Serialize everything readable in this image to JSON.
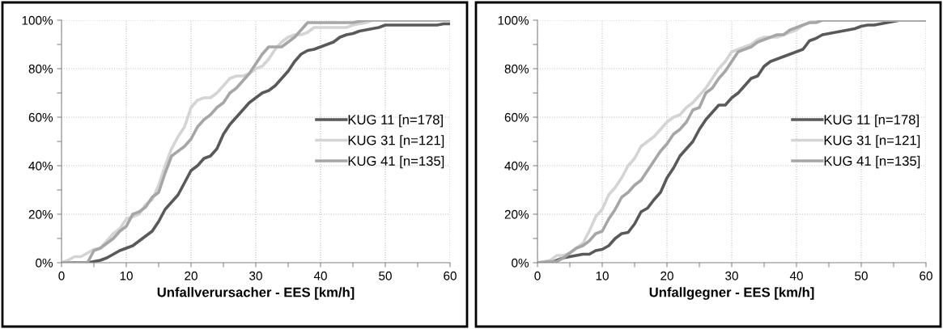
{
  "chart_data": [
    {
      "type": "line",
      "xlabel": "Unfallverursacher - EES [km/h]",
      "xlim": [
        0,
        60
      ],
      "ylim": [
        0,
        100
      ],
      "xticks": [
        0,
        {
          "value": 5,
          "label": null
        },
        10,
        {
          "value": 15,
          "label": null
        },
        20,
        {
          "value": 25,
          "label": null
        },
        30,
        {
          "value": 35,
          "label": null
        },
        40,
        {
          "value": 45,
          "label": null
        },
        50,
        {
          "value": 55,
          "label": null
        },
        60
      ],
      "yticks": [
        {
          "value": 0,
          "label": "0%"
        },
        {
          "value": 10,
          "label": null
        },
        {
          "value": 20,
          "label": "20%"
        },
        {
          "value": 30,
          "label": null
        },
        {
          "value": 40,
          "label": "40%"
        },
        {
          "value": 50,
          "label": null
        },
        {
          "value": 60,
          "label": "60%"
        },
        {
          "value": 70,
          "label": null
        },
        {
          "value": 80,
          "label": "80%"
        },
        {
          "value": 90,
          "label": null
        },
        {
          "value": 100,
          "label": "100%"
        }
      ],
      "grid": true,
      "legend": "right",
      "marker": "none",
      "line_style": "solid",
      "series": [
        {
          "name": "KUG 11 [n=178]",
          "color": "#595959",
          "x": [
            0,
            4,
            5,
            6,
            7,
            8,
            9,
            10,
            11,
            12,
            13,
            14,
            15,
            16,
            17,
            18,
            19,
            20,
            21,
            22,
            23,
            24,
            25,
            26,
            27,
            28,
            29,
            30,
            31,
            32,
            33,
            34,
            35,
            36,
            37,
            38,
            39,
            40,
            41,
            42,
            43,
            44,
            45,
            46,
            47,
            48,
            49,
            50,
            55,
            58,
            59,
            60
          ],
          "values": [
            0,
            0,
            0.5,
            1,
            2,
            3.5,
            5,
            6,
            7,
            9,
            11,
            13,
            17,
            22,
            25,
            28,
            33,
            38,
            40,
            43,
            44,
            47,
            53,
            57,
            60,
            63,
            66,
            68,
            70,
            71,
            73,
            76,
            79,
            83,
            86,
            87.5,
            88,
            89,
            90,
            91,
            93,
            94,
            94.5,
            95.5,
            96,
            96.5,
            97,
            98,
            98,
            98,
            98.5,
            98.5
          ]
        },
        {
          "name": "KUG 31 [n=121]",
          "color": "#d4d4d4",
          "x": [
            0,
            1,
            2,
            3,
            4,
            5,
            6,
            7,
            8,
            9,
            10,
            11,
            12,
            13,
            14,
            15,
            16,
            17,
            18,
            19,
            20,
            21,
            22,
            23,
            24,
            25,
            26,
            27,
            28,
            29,
            30,
            31,
            32,
            33,
            34,
            35,
            36,
            37,
            38,
            39,
            40,
            44,
            45,
            47,
            48,
            60
          ],
          "values": [
            0,
            1,
            2.5,
            2.5,
            4,
            5.5,
            6,
            9,
            12,
            14,
            18,
            19,
            20,
            24,
            26,
            32,
            40,
            47,
            52,
            56,
            64,
            67,
            68,
            68,
            70,
            73,
            76,
            77,
            77,
            78,
            80,
            81,
            84,
            88,
            91,
            93,
            94,
            94,
            95,
            97,
            97,
            97,
            98,
            99,
            100,
            100
          ]
        },
        {
          "name": "KUG 41 [n=135]",
          "color": "#a6a6a6",
          "x": [
            0,
            4,
            5,
            6,
            7,
            8,
            9,
            10,
            11,
            12,
            13,
            14,
            15,
            16,
            17,
            18,
            19,
            20,
            21,
            22,
            23,
            24,
            25,
            26,
            27,
            28,
            29,
            30,
            31,
            32,
            33,
            34,
            35,
            36,
            37,
            38,
            39,
            44,
            45,
            47,
            60
          ],
          "values": [
            0,
            0,
            5,
            6,
            8,
            10,
            13,
            15,
            20,
            21,
            23,
            27,
            29,
            37,
            44,
            46,
            48,
            51,
            56,
            59,
            61,
            64,
            66,
            70,
            72,
            75,
            78,
            82,
            86,
            89,
            89,
            89,
            91,
            93,
            96,
            99,
            99,
            99,
            99,
            100,
            100
          ]
        }
      ]
    },
    {
      "type": "line",
      "xlabel": "Unfallgegner - EES [km/h]",
      "xlim": [
        0,
        60
      ],
      "ylim": [
        0,
        100
      ],
      "xticks": [
        0,
        {
          "value": 5,
          "label": null
        },
        10,
        {
          "value": 15,
          "label": null
        },
        20,
        {
          "value": 25,
          "label": null
        },
        30,
        {
          "value": 35,
          "label": null
        },
        40,
        {
          "value": 45,
          "label": null
        },
        50,
        {
          "value": 55,
          "label": null
        },
        60
      ],
      "yticks": [
        {
          "value": 0,
          "label": "0%"
        },
        {
          "value": 10,
          "label": null
        },
        {
          "value": 20,
          "label": "20%"
        },
        {
          "value": 30,
          "label": null
        },
        {
          "value": 40,
          "label": "40%"
        },
        {
          "value": 50,
          "label": null
        },
        {
          "value": 60,
          "label": "60%"
        },
        {
          "value": 70,
          "label": null
        },
        {
          "value": 80,
          "label": "80%"
        },
        {
          "value": 90,
          "label": null
        },
        {
          "value": 100,
          "label": "100%"
        }
      ],
      "grid": true,
      "legend": "right",
      "marker": "none",
      "line_style": "solid",
      "series": [
        {
          "name": "KUG 11 [n=178]",
          "color": "#595959",
          "x": [
            0,
            2,
            3,
            4,
            5,
            6,
            7,
            8,
            9,
            10,
            11,
            12,
            13,
            14,
            15,
            16,
            17,
            18,
            19,
            20,
            21,
            22,
            23,
            24,
            25,
            26,
            27,
            28,
            29,
            30,
            31,
            32,
            33,
            34,
            35,
            36,
            37,
            38,
            39,
            40,
            41,
            42,
            43,
            44,
            45,
            46,
            47,
            48,
            49,
            50,
            51,
            52,
            53,
            54,
            55,
            56,
            60
          ],
          "values": [
            0,
            0,
            1,
            2,
            2.5,
            3,
            3.5,
            3.5,
            5,
            5.5,
            7,
            10,
            12,
            12.5,
            16,
            21,
            22.5,
            26,
            29,
            35,
            39,
            44,
            47,
            50,
            55,
            59,
            62,
            65,
            65,
            68,
            70,
            73,
            76,
            77,
            81,
            83,
            84,
            85,
            86,
            87,
            88,
            91.5,
            92.5,
            94,
            94.5,
            95,
            95.5,
            96,
            96.5,
            97.5,
            98,
            98,
            98.5,
            99,
            99.5,
            100,
            100
          ]
        },
        {
          "name": "KUG 31 [n=121]",
          "color": "#d4d4d4",
          "x": [
            0,
            1,
            2,
            3,
            4,
            5,
            6,
            7,
            8,
            9,
            10,
            11,
            12,
            13,
            14,
            15,
            16,
            17,
            18,
            19,
            20,
            21,
            22,
            23,
            24,
            25,
            26,
            27,
            28,
            29,
            30,
            31,
            32,
            33,
            34,
            35,
            36,
            37,
            38,
            39,
            40,
            41,
            42,
            43,
            60
          ],
          "values": [
            0,
            0.5,
            1,
            3,
            3,
            4,
            6,
            8,
            13,
            19,
            22,
            28,
            31,
            35,
            40,
            43,
            48,
            50,
            52,
            55,
            58,
            60,
            61,
            64,
            66,
            69,
            72,
            76,
            80,
            83,
            87,
            88,
            89,
            90,
            92,
            93,
            93,
            93,
            94,
            95,
            96,
            98,
            99,
            100,
            100
          ]
        },
        {
          "name": "KUG 41 [n=135]",
          "color": "#a6a6a6",
          "x": [
            0,
            2,
            3,
            4,
            5,
            6,
            7,
            8,
            9,
            10,
            11,
            12,
            13,
            14,
            15,
            16,
            17,
            18,
            19,
            20,
            21,
            22,
            23,
            24,
            25,
            26,
            27,
            28,
            29,
            30,
            31,
            32,
            33,
            34,
            35,
            36,
            37,
            38,
            39,
            40,
            41,
            42,
            43,
            44,
            60
          ],
          "values": [
            0,
            0.5,
            0.5,
            2,
            4,
            6,
            7,
            9,
            12,
            13,
            18,
            22,
            27,
            29,
            32,
            34,
            38,
            42,
            46,
            49,
            53,
            55,
            58,
            63,
            64,
            70,
            72,
            76,
            79,
            83,
            87,
            88,
            89,
            91,
            92,
            93,
            94,
            94,
            96,
            97,
            98,
            99,
            99,
            100,
            100
          ]
        }
      ]
    }
  ]
}
